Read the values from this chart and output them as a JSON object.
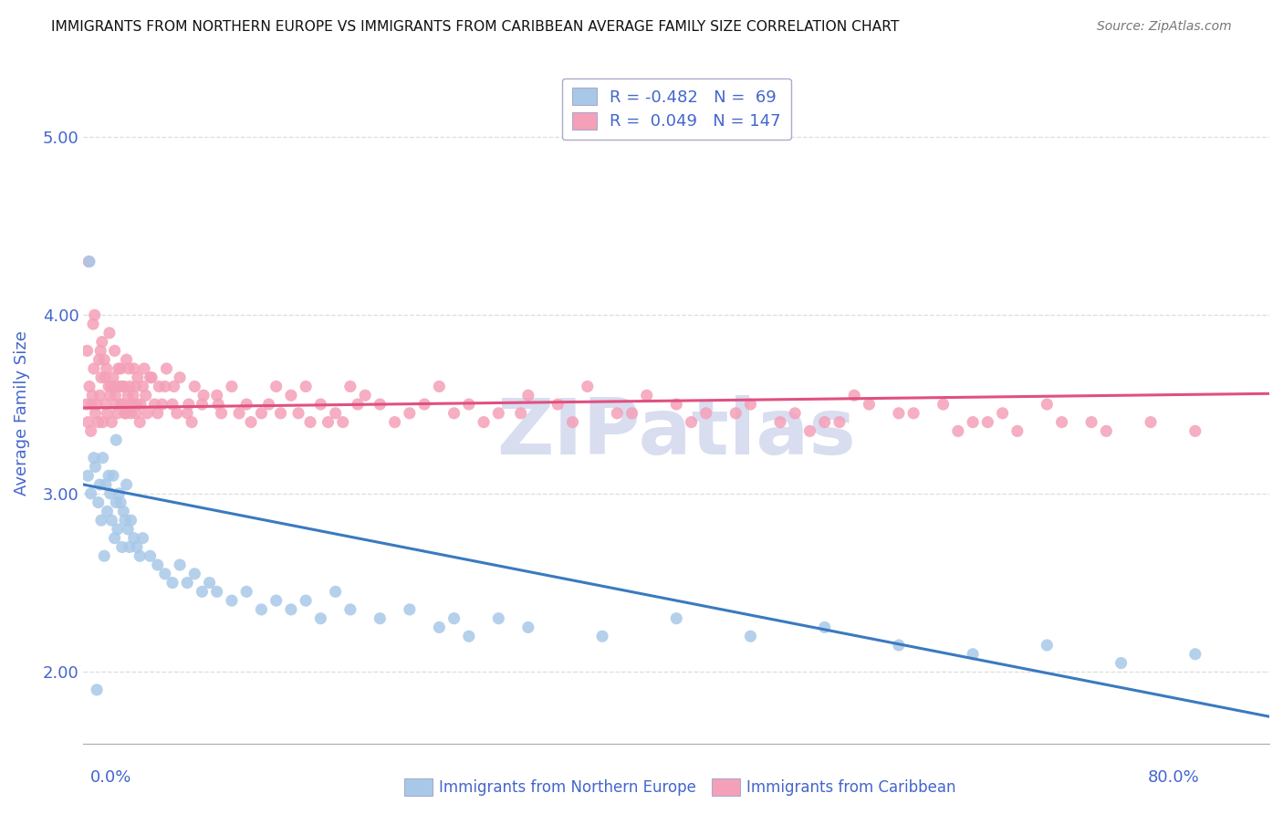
{
  "title": "IMMIGRANTS FROM NORTHERN EUROPE VS IMMIGRANTS FROM CARIBBEAN AVERAGE FAMILY SIZE CORRELATION CHART",
  "source": "Source: ZipAtlas.com",
  "ylabel": "Average Family Size",
  "xmin": 0.0,
  "xmax": 80.0,
  "ymin": 1.6,
  "ymax": 5.3,
  "yticks": [
    2.0,
    3.0,
    4.0,
    5.0
  ],
  "ytick_labels": [
    "2.00",
    "3.00",
    "4.00",
    "5.00"
  ],
  "legend_r1": "R = -0.482",
  "legend_n1": "N =  69",
  "legend_r2": "R =  0.049",
  "legend_n2": "N = 147",
  "color_blue": "#a8c8e8",
  "color_pink": "#f4a0b8",
  "color_blue_line": "#3a7abf",
  "color_pink_line": "#e05080",
  "axis_color": "#4466cc",
  "watermark_color": "#d8ddf0",
  "blue_scatter_x": [
    0.3,
    0.5,
    0.7,
    0.8,
    1.0,
    1.1,
    1.2,
    1.3,
    1.5,
    1.6,
    1.7,
    1.8,
    1.9,
    2.0,
    2.1,
    2.2,
    2.3,
    2.4,
    2.5,
    2.6,
    2.7,
    2.8,
    2.9,
    3.0,
    3.1,
    3.2,
    3.4,
    3.6,
    3.8,
    4.0,
    4.5,
    5.0,
    5.5,
    6.0,
    6.5,
    7.0,
    7.5,
    8.0,
    8.5,
    9.0,
    10.0,
    11.0,
    12.0,
    13.0,
    14.0,
    15.0,
    16.0,
    17.0,
    18.0,
    20.0,
    22.0,
    24.0,
    25.0,
    26.0,
    28.0,
    30.0,
    35.0,
    40.0,
    45.0,
    50.0,
    55.0,
    60.0,
    65.0,
    70.0,
    75.0,
    0.4,
    0.9,
    1.4,
    2.2
  ],
  "blue_scatter_y": [
    3.1,
    3.0,
    3.2,
    3.15,
    2.95,
    3.05,
    2.85,
    3.2,
    3.05,
    2.9,
    3.1,
    3.0,
    2.85,
    3.1,
    2.75,
    2.95,
    2.8,
    3.0,
    2.95,
    2.7,
    2.9,
    2.85,
    3.05,
    2.8,
    2.7,
    2.85,
    2.75,
    2.7,
    2.65,
    2.75,
    2.65,
    2.6,
    2.55,
    2.5,
    2.6,
    2.5,
    2.55,
    2.45,
    2.5,
    2.45,
    2.4,
    2.45,
    2.35,
    2.4,
    2.35,
    2.4,
    2.3,
    2.45,
    2.35,
    2.3,
    2.35,
    2.25,
    2.3,
    2.2,
    2.3,
    2.25,
    2.2,
    2.3,
    2.2,
    2.25,
    2.15,
    2.1,
    2.15,
    2.05,
    2.1,
    4.3,
    1.9,
    2.65,
    3.3
  ],
  "pink_scatter_x": [
    0.2,
    0.3,
    0.4,
    0.5,
    0.6,
    0.7,
    0.8,
    0.9,
    1.0,
    1.1,
    1.2,
    1.3,
    1.4,
    1.5,
    1.6,
    1.7,
    1.8,
    1.9,
    2.0,
    2.1,
    2.2,
    2.3,
    2.4,
    2.5,
    2.6,
    2.7,
    2.8,
    2.9,
    3.0,
    3.1,
    3.2,
    3.3,
    3.4,
    3.5,
    3.6,
    3.8,
    4.0,
    4.2,
    4.5,
    4.8,
    5.0,
    5.5,
    6.0,
    6.5,
    7.0,
    7.5,
    8.0,
    9.0,
    10.0,
    11.0,
    12.0,
    13.0,
    14.0,
    15.0,
    16.0,
    17.0,
    18.0,
    19.0,
    20.0,
    22.0,
    24.0,
    26.0,
    28.0,
    30.0,
    32.0,
    34.0,
    36.0,
    38.0,
    40.0,
    42.0,
    45.0,
    48.0,
    50.0,
    52.0,
    55.0,
    58.0,
    60.0,
    62.0,
    65.0,
    68.0,
    0.25,
    0.55,
    0.75,
    1.05,
    1.25,
    1.55,
    1.75,
    2.05,
    2.35,
    2.65,
    3.05,
    3.35,
    3.65,
    4.1,
    4.6,
    5.1,
    5.6,
    6.1,
    7.1,
    8.1,
    9.1,
    10.5,
    12.5,
    14.5,
    16.5,
    18.5,
    21.0,
    23.0,
    25.0,
    27.0,
    29.5,
    33.0,
    37.0,
    41.0,
    44.0,
    47.0,
    49.0,
    51.0,
    53.0,
    56.0,
    59.0,
    61.0,
    63.0,
    66.0,
    69.0,
    72.0,
    75.0,
    0.35,
    0.65,
    1.15,
    1.45,
    1.85,
    2.15,
    2.55,
    2.85,
    3.25,
    3.55,
    3.85,
    4.3,
    5.3,
    6.3,
    7.3,
    9.3,
    11.3,
    13.3,
    15.3,
    17.5
  ],
  "pink_scatter_y": [
    3.5,
    3.4,
    3.6,
    3.35,
    3.55,
    3.7,
    3.45,
    3.5,
    3.4,
    3.55,
    3.65,
    3.4,
    3.75,
    3.5,
    3.45,
    3.6,
    3.55,
    3.4,
    3.65,
    3.8,
    3.5,
    3.45,
    3.6,
    3.7,
    3.5,
    3.6,
    3.45,
    3.75,
    3.55,
    3.6,
    3.45,
    3.5,
    3.7,
    3.6,
    3.5,
    3.4,
    3.6,
    3.55,
    3.65,
    3.5,
    3.45,
    3.6,
    3.5,
    3.65,
    3.45,
    3.6,
    3.5,
    3.55,
    3.6,
    3.5,
    3.45,
    3.6,
    3.55,
    3.6,
    3.5,
    3.45,
    3.6,
    3.55,
    3.5,
    3.45,
    3.6,
    3.5,
    3.45,
    3.55,
    3.5,
    3.6,
    3.45,
    3.55,
    3.5,
    3.45,
    3.5,
    3.45,
    3.4,
    3.55,
    3.45,
    3.5,
    3.4,
    3.45,
    3.5,
    3.4,
    3.8,
    3.5,
    4.0,
    3.75,
    3.85,
    3.7,
    3.9,
    3.6,
    3.7,
    3.6,
    3.7,
    3.55,
    3.65,
    3.7,
    3.65,
    3.6,
    3.7,
    3.6,
    3.5,
    3.55,
    3.5,
    3.45,
    3.5,
    3.45,
    3.4,
    3.5,
    3.4,
    3.5,
    3.45,
    3.4,
    3.45,
    3.4,
    3.45,
    3.4,
    3.45,
    3.4,
    3.35,
    3.4,
    3.5,
    3.45,
    3.35,
    3.4,
    3.35,
    3.4,
    3.35,
    3.4,
    3.35,
    4.3,
    3.95,
    3.8,
    3.65,
    3.6,
    3.55,
    3.5,
    3.45,
    3.5,
    3.45,
    3.5,
    3.45,
    3.5,
    3.45,
    3.4,
    3.45,
    3.4,
    3.45,
    3.4,
    3.4
  ],
  "blue_trendline_x": [
    0.0,
    80.0
  ],
  "blue_trendline_y": [
    3.05,
    1.75
  ],
  "pink_trendline_x": [
    0.0,
    80.0
  ],
  "pink_trendline_y": [
    3.48,
    3.56
  ],
  "grid_color": "#dddddd",
  "background_color": "#ffffff"
}
